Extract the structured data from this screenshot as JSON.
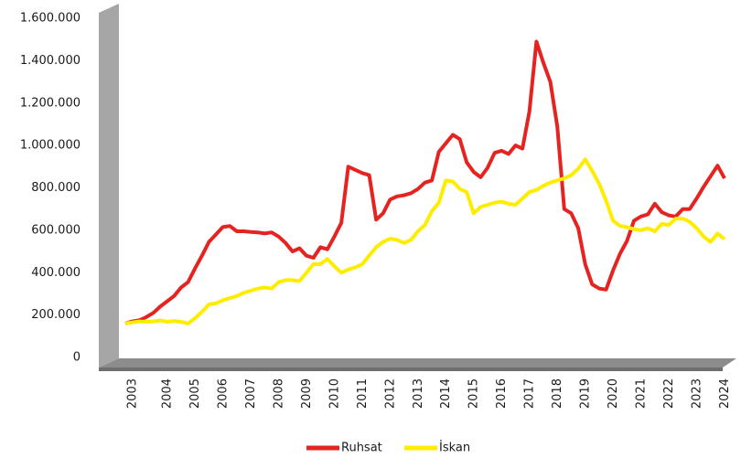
{
  "chart_data": {
    "type": "line",
    "categories": [
      "2003",
      null,
      null,
      null,
      null,
      "2004",
      null,
      null,
      null,
      "2005",
      null,
      null,
      null,
      "2006",
      null,
      null,
      null,
      "2007",
      null,
      null,
      null,
      "2008",
      null,
      null,
      null,
      "2009",
      null,
      null,
      null,
      "2010",
      null,
      null,
      null,
      "2011",
      null,
      null,
      null,
      "2012",
      null,
      null,
      null,
      "2013",
      null,
      null,
      null,
      "2014",
      null,
      null,
      null,
      "2015",
      null,
      null,
      null,
      "2016",
      null,
      null,
      null,
      "2017",
      null,
      null,
      null,
      "2018",
      null,
      null,
      null,
      "2019",
      null,
      null,
      null,
      "2020",
      null,
      null,
      null,
      "2021",
      null,
      null,
      null,
      "2022",
      null,
      null,
      null,
      "2023",
      null,
      null,
      null,
      "2024",
      null
    ],
    "series": [
      {
        "name": "Ruhsat",
        "color": "#e52421",
        "values": [
          160000,
          170000,
          175000,
          190000,
          210000,
          240000,
          265000,
          290000,
          330000,
          355000,
          420000,
          480000,
          545000,
          580000,
          615000,
          620000,
          595000,
          595000,
          592000,
          590000,
          585000,
          590000,
          570000,
          540000,
          500000,
          515000,
          480000,
          470000,
          520000,
          510000,
          570000,
          635000,
          900000,
          885000,
          870000,
          860000,
          650000,
          680000,
          745000,
          760000,
          765000,
          775000,
          795000,
          825000,
          835000,
          970000,
          1010000,
          1050000,
          1030000,
          920000,
          875000,
          850000,
          895000,
          965000,
          975000,
          960000,
          1000000,
          985000,
          1160000,
          1490000,
          1390000,
          1300000,
          1090000,
          700000,
          680000,
          610000,
          440000,
          345000,
          325000,
          320000,
          410000,
          490000,
          550000,
          645000,
          665000,
          675000,
          725000,
          685000,
          670000,
          665000,
          700000,
          700000,
          750000,
          805000,
          855000,
          905000,
          845000
        ]
      },
      {
        "name": "İskan",
        "color": "#ffed00",
        "values": [
          160000,
          165000,
          170000,
          168000,
          170000,
          175000,
          168000,
          172000,
          168000,
          160000,
          185000,
          215000,
          250000,
          255000,
          270000,
          280000,
          290000,
          305000,
          315000,
          325000,
          330000,
          325000,
          355000,
          365000,
          365000,
          360000,
          400000,
          440000,
          440000,
          465000,
          430000,
          400000,
          415000,
          425000,
          440000,
          480000,
          520000,
          545000,
          560000,
          555000,
          540000,
          555000,
          595000,
          625000,
          690000,
          730000,
          835000,
          830000,
          795000,
          780000,
          680000,
          710000,
          720000,
          730000,
          735000,
          725000,
          720000,
          750000,
          780000,
          790000,
          810000,
          825000,
          835000,
          845000,
          860000,
          890000,
          935000,
          880000,
          820000,
          740000,
          645000,
          620000,
          615000,
          605000,
          600000,
          610000,
          595000,
          630000,
          625000,
          655000,
          655000,
          640000,
          610000,
          570000,
          545000,
          585000,
          558000
        ]
      }
    ],
    "ylim": [
      0,
      1600000
    ],
    "yticks": [
      0,
      {
        "value": 200000,
        "label": "200.000"
      },
      {
        "value": 400000,
        "label": "400.000"
      },
      {
        "value": 600000,
        "label": "600.000"
      },
      {
        "value": 800000,
        "label": "800.000"
      },
      {
        "value": 1000000,
        "label": "1.000.000"
      },
      {
        "value": 1200000,
        "label": "1.200.000"
      },
      {
        "value": 1400000,
        "label": "1.400.000"
      },
      {
        "value": 1600000,
        "label": "1.600.000"
      }
    ],
    "legend": "bottom"
  }
}
